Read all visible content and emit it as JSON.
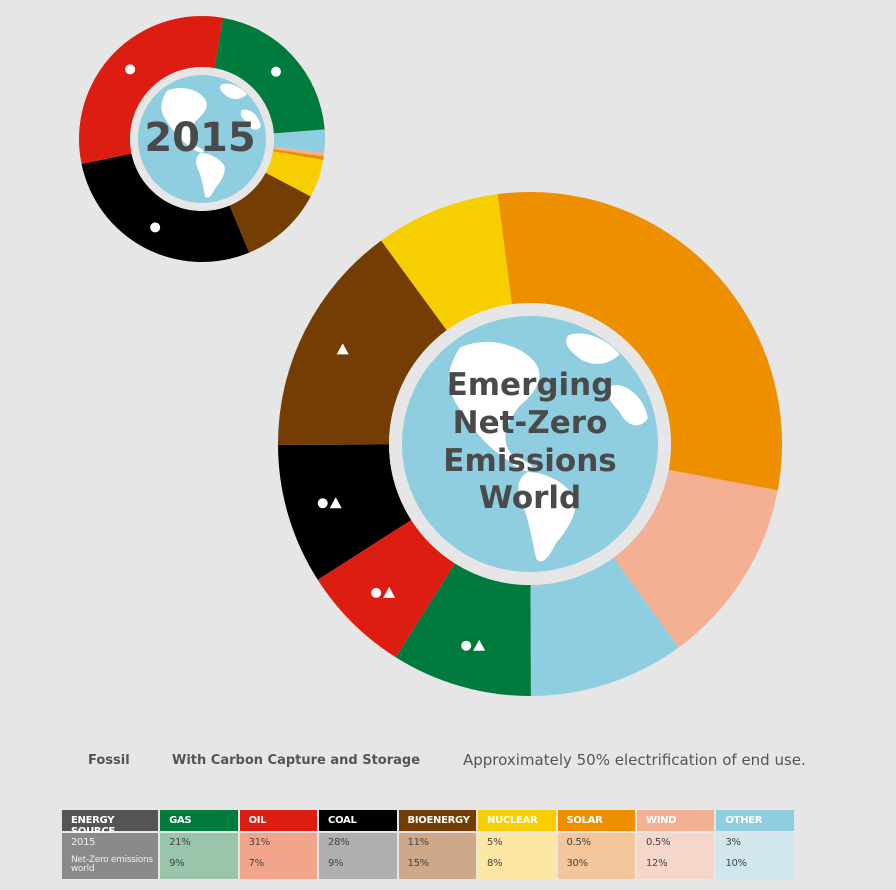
{
  "colors": {
    "background": "#e6e6e6",
    "globe_ocean": "#8fcde0",
    "globe_land": "#ffffff",
    "ring_gap": "#e6e6e6",
    "gas": "#007a3d",
    "oil": "#dd1d12",
    "coal": "#000000",
    "bioenergy": "#743d03",
    "nuclear": "#f7ce00",
    "solar": "#ee8f00",
    "wind": "#f3b093",
    "other": "#8fcde0",
    "center_text": "#4a4a4a"
  },
  "chart_data": [
    {
      "type": "pie",
      "title": "2015",
      "categories": [
        "Gas",
        "Oil",
        "Coal",
        "Bioenergy",
        "Nuclear",
        "Solar",
        "Wind",
        "Other"
      ],
      "values": [
        21,
        31,
        28,
        11,
        5,
        0.5,
        0.5,
        3
      ],
      "markers": {
        "Gas": "circle",
        "Oil": "circle",
        "Coal": "circle"
      }
    },
    {
      "type": "pie",
      "title": "Emerging Net-Zero Emissions World",
      "title_lines": [
        "Emerging",
        "Net-Zero",
        "Emissions",
        "World"
      ],
      "categories": [
        "Gas",
        "Oil",
        "Coal",
        "Bioenergy",
        "Nuclear",
        "Solar",
        "Wind",
        "Other"
      ],
      "values": [
        9,
        7,
        9,
        15,
        8,
        30,
        12,
        10
      ],
      "markers": {
        "Gas": "circle-triangle",
        "Oil": "circle-triangle",
        "Coal": "circle-triangle",
        "Bioenergy": "triangle"
      }
    }
  ],
  "legend": {
    "fossil": "Fossil",
    "ccs": "With Carbon Capture and Storage",
    "electrification": "Approximately 50% electrification of end use."
  },
  "table": {
    "headers": [
      {
        "label": "ENERGY SOURCE",
        "bg": "#555555",
        "fg": "#ffffff"
      },
      {
        "label": "GAS",
        "bg": "#007a3d",
        "fg": "#ffffff"
      },
      {
        "label": "OIL",
        "bg": "#dd1d12",
        "fg": "#ffffff"
      },
      {
        "label": "COAL",
        "bg": "#000000",
        "fg": "#ffffff"
      },
      {
        "label": "BIOENERGY",
        "bg": "#743d03",
        "fg": "#ffffff"
      },
      {
        "label": "NUCLEAR",
        "bg": "#f7ce00",
        "fg": "#ffffff"
      },
      {
        "label": "SOLAR",
        "bg": "#ee8f00",
        "fg": "#ffffff"
      },
      {
        "label": "WIND",
        "bg": "#f3b093",
        "fg": "#ffffff"
      },
      {
        "label": "OTHER",
        "bg": "#8fcde0",
        "fg": "#ffffff"
      }
    ],
    "row_bgs": [
      "#8a8a8a",
      "#99c5ab",
      "#f3a58c",
      "#b0b0b0",
      "#cda889",
      "#fce6a3",
      "#f5c69b",
      "#f4d6cb",
      "#d2e6ee"
    ],
    "rows": [
      {
        "cells": [
          "2015",
          "21%",
          "31%",
          "28%",
          "11%",
          "5%",
          "0.5%",
          "0.5%",
          "3%"
        ]
      },
      {
        "cells": [
          "Net-Zero emissions world",
          "9%",
          "7%",
          "9%",
          "15%",
          "8%",
          "30%",
          "12%",
          "10%"
        ]
      }
    ]
  }
}
